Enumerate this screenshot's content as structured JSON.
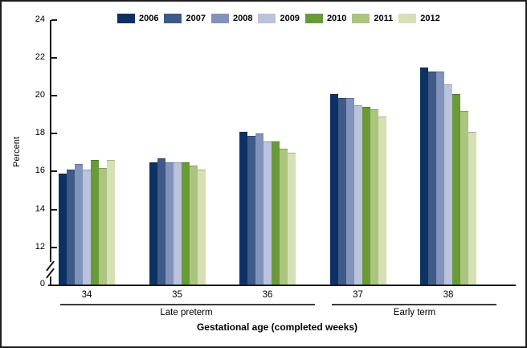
{
  "figure": {
    "ylabel": "Percent",
    "xlabel": "Gestational age (completed weeks)",
    "group_labels": [
      {
        "label": "Late preterm",
        "spans": [
          "34",
          "35",
          "36"
        ]
      },
      {
        "label": "Early term",
        "spans": [
          "37",
          "38"
        ]
      }
    ]
  },
  "chart_data": {
    "type": "bar",
    "title": "",
    "ylabel": "Percent",
    "xlabel": "Gestational age (completed weeks)",
    "categories": [
      "34",
      "35",
      "36",
      "37",
      "38"
    ],
    "series": [
      {
        "name": "2006",
        "color": "#0d3164",
        "values": [
          15.9,
          16.5,
          18.1,
          20.1,
          21.5
        ]
      },
      {
        "name": "2007",
        "color": "#3d5a88",
        "values": [
          16.1,
          16.7,
          17.9,
          19.9,
          21.3
        ]
      },
      {
        "name": "2008",
        "color": "#8093bb",
        "values": [
          16.4,
          16.5,
          18.0,
          19.9,
          21.3
        ]
      },
      {
        "name": "2009",
        "color": "#bbc2db",
        "values": [
          16.1,
          16.5,
          17.6,
          19.5,
          20.6
        ]
      },
      {
        "name": "2010",
        "color": "#699a37",
        "values": [
          16.6,
          16.5,
          17.6,
          19.4,
          20.1
        ]
      },
      {
        "name": "2011",
        "color": "#abc57f",
        "values": [
          16.2,
          16.3,
          17.2,
          19.3,
          19.2
        ]
      },
      {
        "name": "2012",
        "color": "#d5e1b5",
        "values": [
          16.6,
          16.1,
          17.0,
          18.9,
          18.1
        ]
      }
    ],
    "y_axis": {
      "ticks": [
        24,
        22,
        20,
        18,
        16,
        14,
        12,
        0
      ],
      "range_shown": [
        12,
        24
      ],
      "axis_break_between": [
        0,
        12
      ],
      "grid": false
    },
    "legend_position": "top",
    "group_labels": [
      {
        "label": "Late preterm",
        "spans": [
          "34",
          "35",
          "36"
        ]
      },
      {
        "label": "Early term",
        "spans": [
          "37",
          "38"
        ]
      }
    ]
  }
}
